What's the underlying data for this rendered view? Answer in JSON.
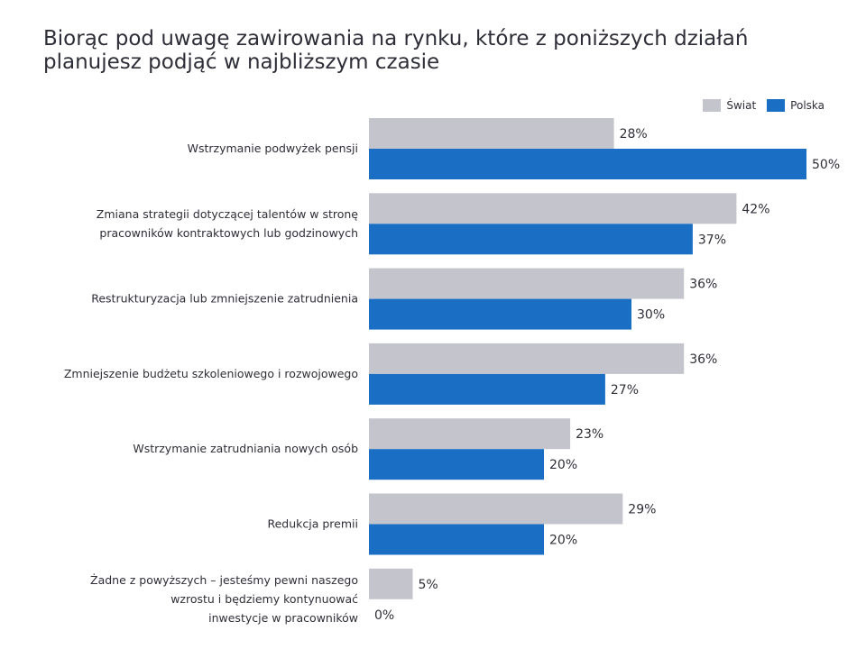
{
  "title_lines": [
    "Biorąc pod uwagę zawirowania na rynku, które z poniższych działań",
    "planujesz podjąć w najbliższym czasie"
  ],
  "chart_data": {
    "type": "bar",
    "orientation": "horizontal",
    "unit": "%",
    "categories": [
      [
        "Wstrzymanie podwyżek pensji"
      ],
      [
        "Zmiana strategii dotyczącej talentów w stronę",
        "pracowników kontraktowych lub godzinowych"
      ],
      [
        "Restrukturyzacja lub zmniejszenie zatrudnienia"
      ],
      [
        "Zmniejszenie budżetu szkoleniowego i rozwojowego"
      ],
      [
        "Wstrzymanie zatrudniania nowych osób"
      ],
      [
        "Redukcja premii"
      ],
      [
        "Żadne z powyższych – jesteśmy pewni naszego",
        "wzrostu i będziemy kontynuować",
        "inwestycje w pracowników"
      ]
    ],
    "series": [
      {
        "name": "Świat",
        "color": "#c4c4cd",
        "values": [
          28,
          42,
          36,
          36,
          23,
          29,
          5
        ]
      },
      {
        "name": "Polska",
        "color": "#1a6fc4",
        "values": [
          50,
          37,
          30,
          27,
          20,
          20,
          0
        ]
      }
    ],
    "xlim": [
      0,
      50
    ],
    "legend_position": "top-right",
    "grid": false
  }
}
